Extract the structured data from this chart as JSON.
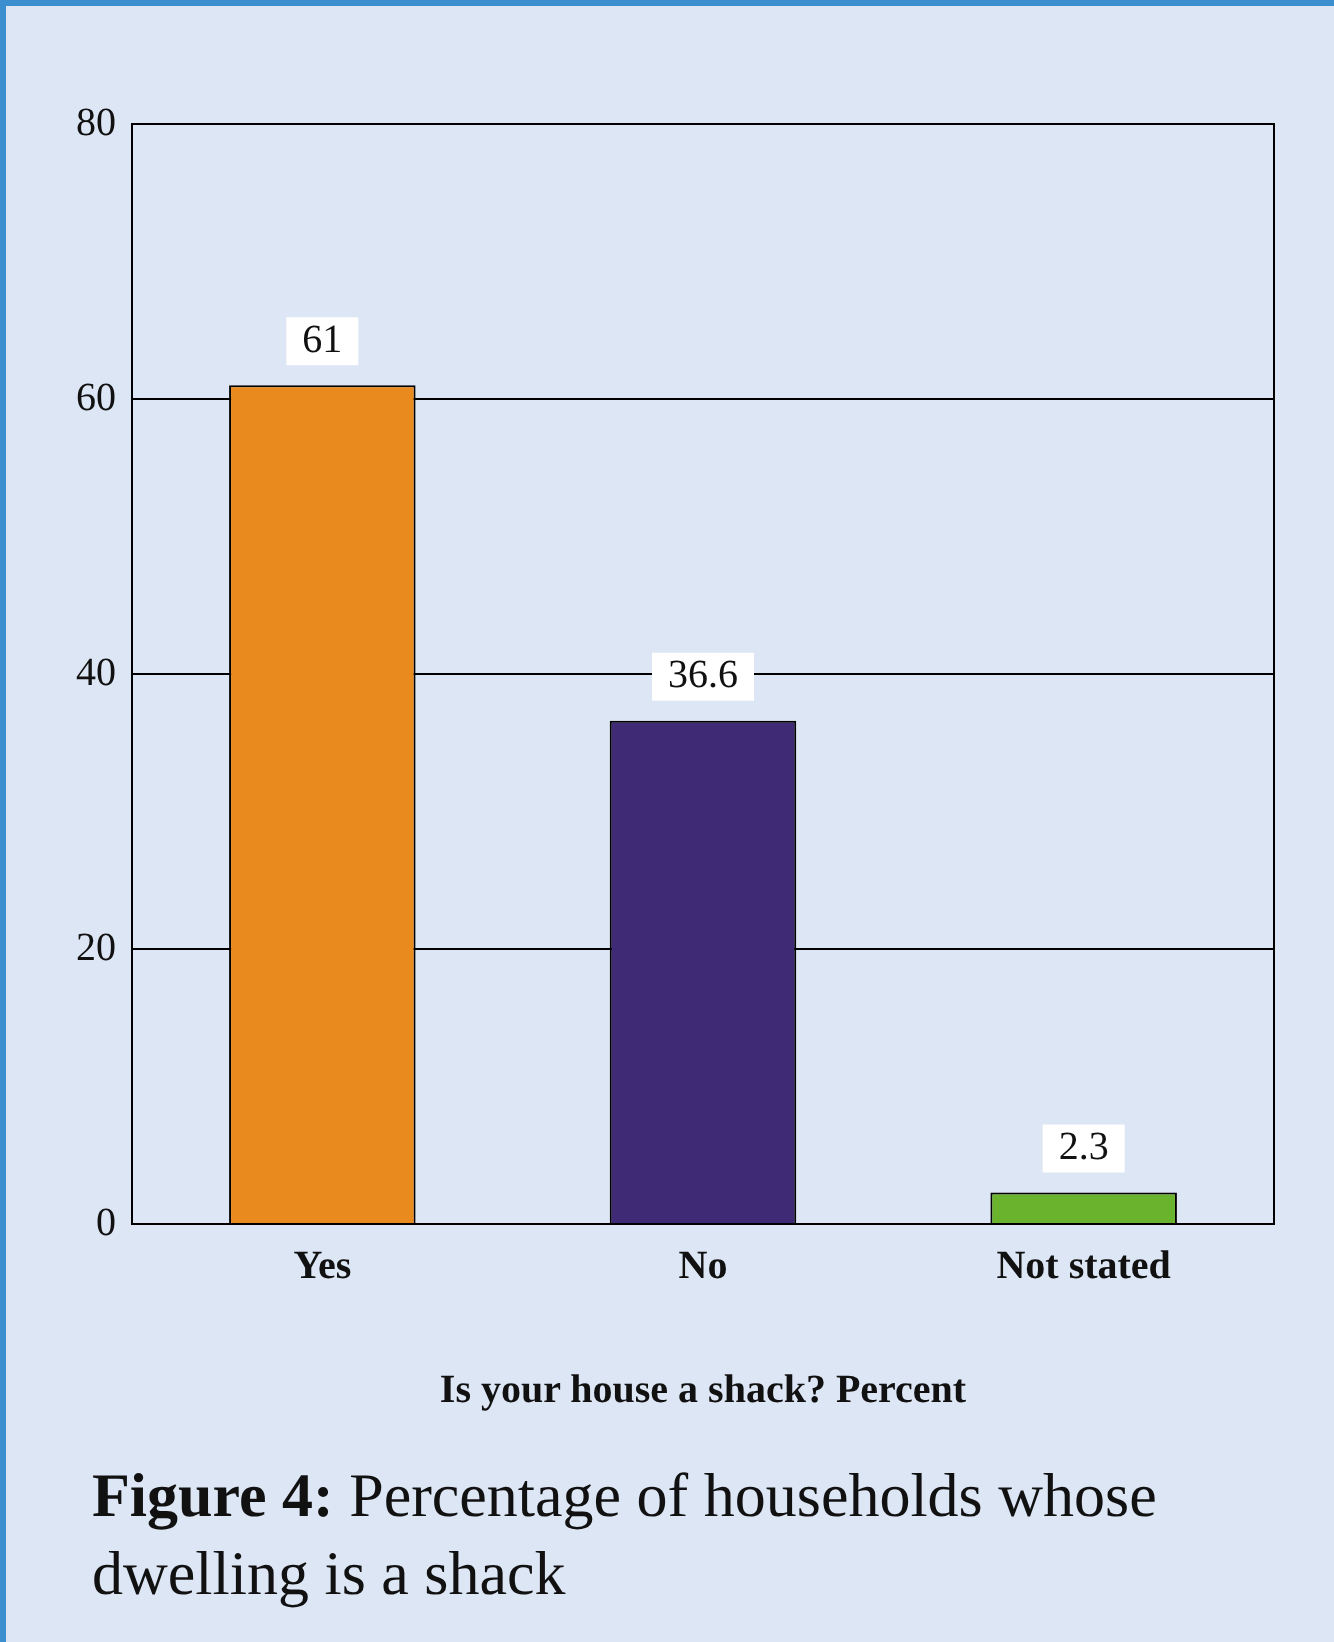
{
  "chart_data": {
    "type": "bar",
    "xlabel": "Is your house a shack? Percent",
    "categories": [
      "Yes",
      "No",
      "Not stated"
    ],
    "values": [
      61,
      36.6,
      2.3
    ],
    "colors": [
      "#e98a1f",
      "#3f2a75",
      "#6ab42d"
    ],
    "ylim": [
      0,
      80
    ],
    "yticks": [
      0,
      20,
      40,
      60,
      80
    ],
    "grid": "y",
    "legend": false,
    "data_labels": true,
    "annotations": [
      "Figure 4: Percentage of households whose dwelling is a shack"
    ]
  }
}
